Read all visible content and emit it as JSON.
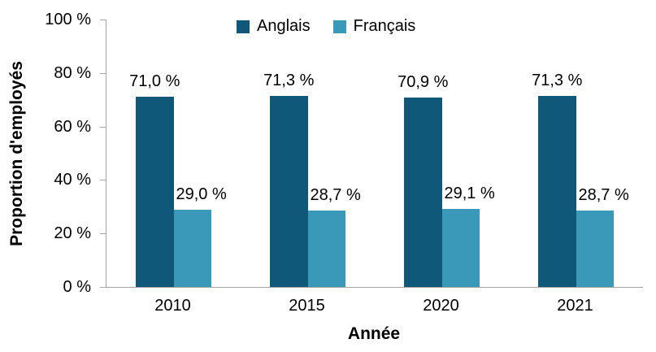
{
  "chart_data": {
    "type": "bar",
    "title": "",
    "xlabel": "Année",
    "ylabel": "Proportion d'employés",
    "categories": [
      "2010",
      "2015",
      "2020",
      "2021"
    ],
    "series": [
      {
        "name": "Anglais",
        "color": "#10587A",
        "values": [
          71.0,
          71.3,
          70.9,
          71.3
        ],
        "labels": [
          "71,0 %",
          "71,3 %",
          "70,9 %",
          "71,3 %"
        ]
      },
      {
        "name": "Français",
        "color": "#3A99B9",
        "values": [
          29.0,
          28.7,
          29.1,
          28.7
        ],
        "labels": [
          "29,0 %",
          "28,7 %",
          "29,1 %",
          "28,7 %"
        ]
      }
    ],
    "ylim": [
      0,
      100
    ],
    "yticks": [
      0,
      20,
      40,
      60,
      80,
      100
    ],
    "ytick_labels": [
      "0 %",
      "20 %",
      "40 %",
      "60 %",
      "80 %",
      "100 %"
    ],
    "legend_position": "top-center",
    "grid": false,
    "axis_color": "#A6A6A6",
    "text_color": "#000000",
    "background_color": "#FFFFFF"
  }
}
